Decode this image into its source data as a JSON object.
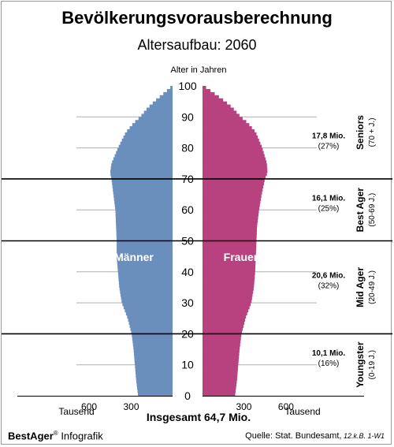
{
  "header": {
    "title": "Bevölkerungsvorausberechnung",
    "subtitle": "Altersaufbau: 2060"
  },
  "footer": {
    "total": "Insgesamt 64,7 Mio.",
    "brand_name": "BestAger",
    "brand_mark": "®",
    "brand_suffix": " Infografik",
    "source_label": "Quelle:  Stat. Bundesamt,",
    "source_note": " 12.k.B. 1-W1"
  },
  "colors": {
    "male": "#6a8fbd",
    "female": "#b8427f",
    "gridline": "#b0b0b0",
    "band_line": "#000000"
  },
  "chart_data": {
    "type": "bar",
    "orientation": "horizontal-pyramid",
    "title": "Altersaufbau: 2060",
    "ylabel": "Alter in Jahren",
    "xlabel": "Tausend",
    "ylim": [
      0,
      100
    ],
    "yticks": [
      0,
      10,
      20,
      30,
      40,
      50,
      60,
      70,
      80,
      90,
      100
    ],
    "xticks_left": [
      "600",
      "300"
    ],
    "xticks_right": [
      "300",
      "600"
    ],
    "xlim": [
      0,
      650
    ],
    "grid": true,
    "series": [
      {
        "name": "Männer",
        "side": "left",
        "x": [
          0,
          5,
          10,
          15,
          20,
          25,
          30,
          35,
          40,
          45,
          50,
          55,
          60,
          65,
          70,
          72,
          75,
          80,
          85,
          88,
          90,
          93,
          95,
          97,
          99,
          100
        ],
        "values": [
          265,
          280,
          290,
          300,
          315,
          345,
          390,
          410,
          420,
          430,
          430,
          435,
          440,
          455,
          470,
          480,
          470,
          420,
          360,
          300,
          250,
          190,
          140,
          85,
          30,
          5
        ]
      },
      {
        "name": "Frauen",
        "side": "right",
        "x": [
          0,
          5,
          10,
          15,
          20,
          25,
          30,
          35,
          40,
          45,
          50,
          55,
          60,
          65,
          70,
          72,
          75,
          80,
          85,
          88,
          90,
          93,
          95,
          97,
          99,
          100
        ],
        "values": [
          250,
          265,
          275,
          285,
          300,
          330,
          375,
          395,
          405,
          410,
          415,
          420,
          435,
          455,
          480,
          500,
          495,
          460,
          410,
          350,
          295,
          230,
          175,
          110,
          45,
          10
        ]
      }
    ],
    "segments": [
      {
        "name": "Seniors",
        "range": "(70 + J.)",
        "value": "17,8 Mio.",
        "share": "(27%)",
        "from": 70,
        "to": 100,
        "label_age": 82
      },
      {
        "name": "Best Ager",
        "range": "(50-69 J.)",
        "value": "16,1 Mio.",
        "share": "(25%)",
        "from": 50,
        "to": 70,
        "label_age": 62
      },
      {
        "name": "Mid Ager",
        "range": "(20-49 J.)",
        "value": "20,6 Mio.",
        "share": "(32%)",
        "from": 20,
        "to": 50,
        "label_age": 37
      },
      {
        "name": "Youngster",
        "range": "(0-19 J.)",
        "value": "10,1 Mio.",
        "share": "(16%)",
        "from": 0,
        "to": 20,
        "label_age": 12
      }
    ],
    "band_boundaries": [
      20,
      50,
      70
    ]
  }
}
